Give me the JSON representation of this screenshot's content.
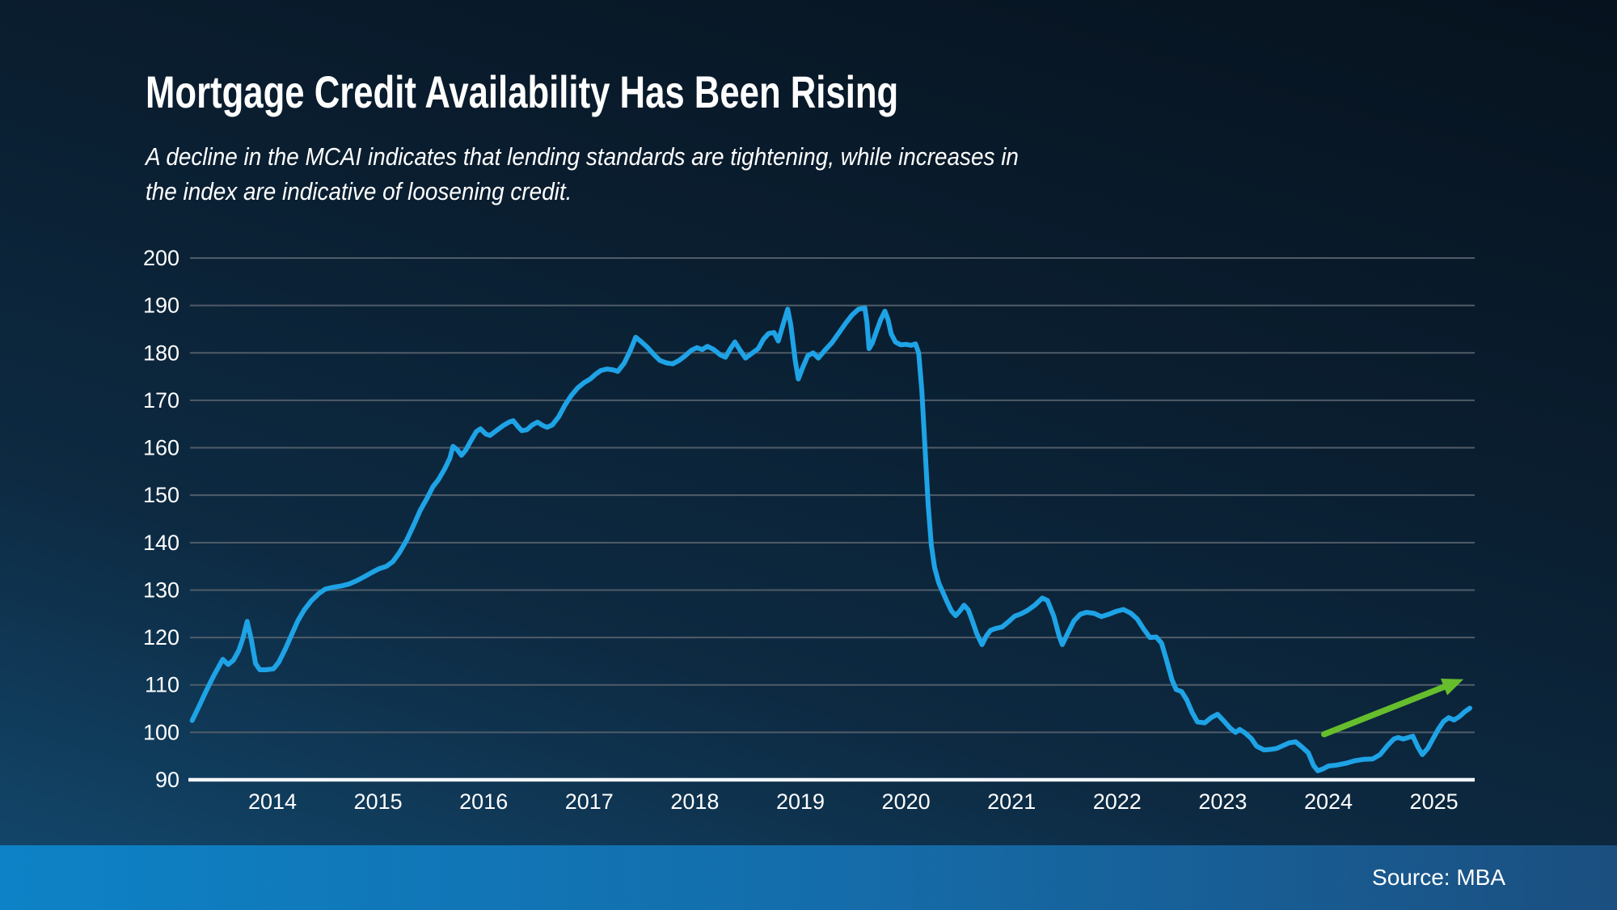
{
  "header": {
    "title": "Mortgage Credit Availability Has Been Rising",
    "subtitle_line1": "A decline in the MCAI indicates that lending standards are tightening, while increases in",
    "subtitle_line2": "the index are indicative of loosening credit."
  },
  "footer": {
    "source": "Source: MBA"
  },
  "colors": {
    "line": "#1ea3e6",
    "arrow": "#66be2c",
    "grid": "#505c68",
    "baseline": "#f2f6f9",
    "text": "#ffffff",
    "band_left": "#0d82c6",
    "band_right": "#1b4f80",
    "bg_top": "#06121e",
    "bg_bottom": "#134a70"
  },
  "chart_data": {
    "type": "line",
    "title": "Mortgage Credit Availability Has Been Rising",
    "xlabel": "",
    "ylabel": "",
    "ylim": [
      90,
      200
    ],
    "xlim": [
      2013.2,
      2025.45
    ],
    "grid": true,
    "legend": "none",
    "y_ticks": [
      90,
      100,
      110,
      120,
      130,
      140,
      150,
      160,
      170,
      180,
      190,
      200
    ],
    "x_ticks": [
      2014,
      2015,
      2016,
      2017,
      2018,
      2019,
      2020,
      2021,
      2022,
      2023,
      2024,
      2025
    ],
    "annotation_arrow": {
      "from": [
        2023.96,
        99.6
      ],
      "to": [
        2025.28,
        111.2
      ]
    },
    "series": [
      {
        "name": "MCAI",
        "points": [
          [
            2013.24,
            102.5
          ],
          [
            2013.3,
            105.3
          ],
          [
            2013.37,
            108.6
          ],
          [
            2013.44,
            111.8
          ],
          [
            2013.5,
            114.2
          ],
          [
            2013.53,
            115.4
          ],
          [
            2013.58,
            114.3
          ],
          [
            2013.63,
            115.2
          ],
          [
            2013.68,
            117.2
          ],
          [
            2013.72,
            119.8
          ],
          [
            2013.76,
            123.4
          ],
          [
            2013.8,
            119.5
          ],
          [
            2013.84,
            114.5
          ],
          [
            2013.88,
            113.2
          ],
          [
            2013.94,
            113.2
          ],
          [
            2014.01,
            113.4
          ],
          [
            2014.06,
            114.8
          ],
          [
            2014.12,
            117.5
          ],
          [
            2014.18,
            120.5
          ],
          [
            2014.24,
            123.5
          ],
          [
            2014.3,
            125.8
          ],
          [
            2014.37,
            127.8
          ],
          [
            2014.44,
            129.3
          ],
          [
            2014.5,
            130.2
          ],
          [
            2014.58,
            130.6
          ],
          [
            2014.66,
            130.9
          ],
          [
            2014.73,
            131.3
          ],
          [
            2014.8,
            132.0
          ],
          [
            2014.87,
            132.8
          ],
          [
            2014.94,
            133.7
          ],
          [
            2015.01,
            134.5
          ],
          [
            2015.08,
            135.0
          ],
          [
            2015.14,
            136.0
          ],
          [
            2015.2,
            137.8
          ],
          [
            2015.27,
            140.5
          ],
          [
            2015.34,
            143.8
          ],
          [
            2015.4,
            146.8
          ],
          [
            2015.46,
            149.2
          ],
          [
            2015.52,
            151.8
          ],
          [
            2015.57,
            153.2
          ],
          [
            2015.63,
            155.5
          ],
          [
            2015.68,
            157.8
          ],
          [
            2015.71,
            160.3
          ],
          [
            2015.75,
            159.6
          ],
          [
            2015.79,
            158.4
          ],
          [
            2015.83,
            159.5
          ],
          [
            2015.88,
            161.5
          ],
          [
            2015.93,
            163.4
          ],
          [
            2015.97,
            164.0
          ],
          [
            2016.02,
            162.9
          ],
          [
            2016.06,
            162.6
          ],
          [
            2016.12,
            163.6
          ],
          [
            2016.18,
            164.6
          ],
          [
            2016.24,
            165.4
          ],
          [
            2016.28,
            165.7
          ],
          [
            2016.32,
            164.6
          ],
          [
            2016.36,
            163.6
          ],
          [
            2016.41,
            163.8
          ],
          [
            2016.46,
            164.8
          ],
          [
            2016.51,
            165.4
          ],
          [
            2016.56,
            164.7
          ],
          [
            2016.6,
            164.3
          ],
          [
            2016.65,
            164.8
          ],
          [
            2016.71,
            166.5
          ],
          [
            2016.77,
            169.0
          ],
          [
            2016.83,
            171.0
          ],
          [
            2016.89,
            172.6
          ],
          [
            2016.95,
            173.7
          ],
          [
            2017.01,
            174.5
          ],
          [
            2017.06,
            175.5
          ],
          [
            2017.11,
            176.3
          ],
          [
            2017.17,
            176.6
          ],
          [
            2017.23,
            176.4
          ],
          [
            2017.27,
            176.1
          ],
          [
            2017.33,
            177.8
          ],
          [
            2017.39,
            180.5
          ],
          [
            2017.44,
            183.3
          ],
          [
            2017.49,
            182.4
          ],
          [
            2017.55,
            181.2
          ],
          [
            2017.61,
            179.7
          ],
          [
            2017.67,
            178.4
          ],
          [
            2017.73,
            177.9
          ],
          [
            2017.79,
            177.7
          ],
          [
            2017.85,
            178.4
          ],
          [
            2017.91,
            179.4
          ],
          [
            2017.97,
            180.6
          ],
          [
            2018.02,
            181.1
          ],
          [
            2018.07,
            180.7
          ],
          [
            2018.12,
            181.4
          ],
          [
            2018.18,
            180.7
          ],
          [
            2018.24,
            179.6
          ],
          [
            2018.29,
            179.1
          ],
          [
            2018.34,
            181.0
          ],
          [
            2018.38,
            182.3
          ],
          [
            2018.43,
            180.5
          ],
          [
            2018.48,
            178.9
          ],
          [
            2018.54,
            179.9
          ],
          [
            2018.6,
            180.9
          ],
          [
            2018.65,
            182.9
          ],
          [
            2018.7,
            184.1
          ],
          [
            2018.75,
            184.3
          ],
          [
            2018.79,
            182.5
          ],
          [
            2018.84,
            186.3
          ],
          [
            2018.88,
            189.2
          ],
          [
            2018.91,
            185.8
          ],
          [
            2018.95,
            178.5
          ],
          [
            2018.98,
            174.5
          ],
          [
            2019.02,
            176.8
          ],
          [
            2019.07,
            179.4
          ],
          [
            2019.12,
            180.0
          ],
          [
            2019.17,
            178.9
          ],
          [
            2019.23,
            180.5
          ],
          [
            2019.3,
            182.2
          ],
          [
            2019.37,
            184.4
          ],
          [
            2019.43,
            186.3
          ],
          [
            2019.49,
            188.0
          ],
          [
            2019.55,
            189.2
          ],
          [
            2019.61,
            189.5
          ],
          [
            2019.63,
            186.5
          ],
          [
            2019.65,
            180.9
          ],
          [
            2019.68,
            182.0
          ],
          [
            2019.72,
            184.5
          ],
          [
            2019.76,
            187.0
          ],
          [
            2019.8,
            188.8
          ],
          [
            2019.83,
            187.0
          ],
          [
            2019.86,
            184.0
          ],
          [
            2019.9,
            182.3
          ],
          [
            2019.95,
            181.7
          ],
          [
            2020.0,
            181.8
          ],
          [
            2020.05,
            181.6
          ],
          [
            2020.09,
            181.9
          ],
          [
            2020.12,
            180.0
          ],
          [
            2020.15,
            172.0
          ],
          [
            2020.18,
            160.0
          ],
          [
            2020.21,
            148.0
          ],
          [
            2020.24,
            139.5
          ],
          [
            2020.27,
            134.8
          ],
          [
            2020.31,
            131.5
          ],
          [
            2020.35,
            129.5
          ],
          [
            2020.39,
            127.5
          ],
          [
            2020.43,
            125.6
          ],
          [
            2020.47,
            124.6
          ],
          [
            2020.51,
            125.6
          ],
          [
            2020.55,
            126.8
          ],
          [
            2020.59,
            125.8
          ],
          [
            2020.63,
            123.4
          ],
          [
            2020.67,
            120.8
          ],
          [
            2020.72,
            118.5
          ],
          [
            2020.76,
            120.3
          ],
          [
            2020.8,
            121.5
          ],
          [
            2020.85,
            121.9
          ],
          [
            2020.91,
            122.2
          ],
          [
            2020.97,
            123.3
          ],
          [
            2021.03,
            124.5
          ],
          [
            2021.09,
            125.0
          ],
          [
            2021.15,
            125.7
          ],
          [
            2021.22,
            126.8
          ],
          [
            2021.29,
            128.3
          ],
          [
            2021.34,
            127.8
          ],
          [
            2021.4,
            124.5
          ],
          [
            2021.45,
            120.3
          ],
          [
            2021.48,
            118.5
          ],
          [
            2021.53,
            120.8
          ],
          [
            2021.59,
            123.5
          ],
          [
            2021.65,
            124.9
          ],
          [
            2021.71,
            125.3
          ],
          [
            2021.78,
            125.1
          ],
          [
            2021.85,
            124.4
          ],
          [
            2021.92,
            124.9
          ],
          [
            2021.99,
            125.5
          ],
          [
            2022.06,
            125.9
          ],
          [
            2022.13,
            125.1
          ],
          [
            2022.19,
            123.9
          ],
          [
            2022.25,
            121.8
          ],
          [
            2022.31,
            120.0
          ],
          [
            2022.37,
            120.1
          ],
          [
            2022.42,
            118.8
          ],
          [
            2022.47,
            115.0
          ],
          [
            2022.52,
            111.0
          ],
          [
            2022.56,
            109.0
          ],
          [
            2022.61,
            108.6
          ],
          [
            2022.66,
            106.8
          ],
          [
            2022.71,
            104.2
          ],
          [
            2022.76,
            102.2
          ],
          [
            2022.83,
            102.0
          ],
          [
            2022.89,
            103.1
          ],
          [
            2022.95,
            103.8
          ],
          [
            2023.01,
            102.4
          ],
          [
            2023.07,
            100.9
          ],
          [
            2023.12,
            100.0
          ],
          [
            2023.16,
            100.6
          ],
          [
            2023.21,
            99.9
          ],
          [
            2023.27,
            98.7
          ],
          [
            2023.32,
            97.1
          ],
          [
            2023.39,
            96.3
          ],
          [
            2023.45,
            96.4
          ],
          [
            2023.51,
            96.6
          ],
          [
            2023.57,
            97.2
          ],
          [
            2023.63,
            97.8
          ],
          [
            2023.69,
            98.0
          ],
          [
            2023.75,
            96.9
          ],
          [
            2023.81,
            95.7
          ],
          [
            2023.86,
            93.0
          ],
          [
            2023.9,
            91.9
          ],
          [
            2023.95,
            92.3
          ],
          [
            2024.0,
            92.9
          ],
          [
            2024.08,
            93.1
          ],
          [
            2024.17,
            93.5
          ],
          [
            2024.25,
            94.0
          ],
          [
            2024.33,
            94.3
          ],
          [
            2024.42,
            94.4
          ],
          [
            2024.49,
            95.3
          ],
          [
            2024.56,
            97.2
          ],
          [
            2024.62,
            98.6
          ],
          [
            2024.66,
            98.9
          ],
          [
            2024.71,
            98.6
          ],
          [
            2024.77,
            99.0
          ],
          [
            2024.8,
            99.2
          ],
          [
            2024.85,
            96.8
          ],
          [
            2024.89,
            95.3
          ],
          [
            2024.94,
            96.6
          ],
          [
            2024.99,
            98.6
          ],
          [
            2025.04,
            100.6
          ],
          [
            2025.09,
            102.3
          ],
          [
            2025.14,
            103.1
          ],
          [
            2025.19,
            102.6
          ],
          [
            2025.24,
            103.3
          ],
          [
            2025.29,
            104.3
          ],
          [
            2025.34,
            105.1
          ]
        ]
      }
    ]
  }
}
